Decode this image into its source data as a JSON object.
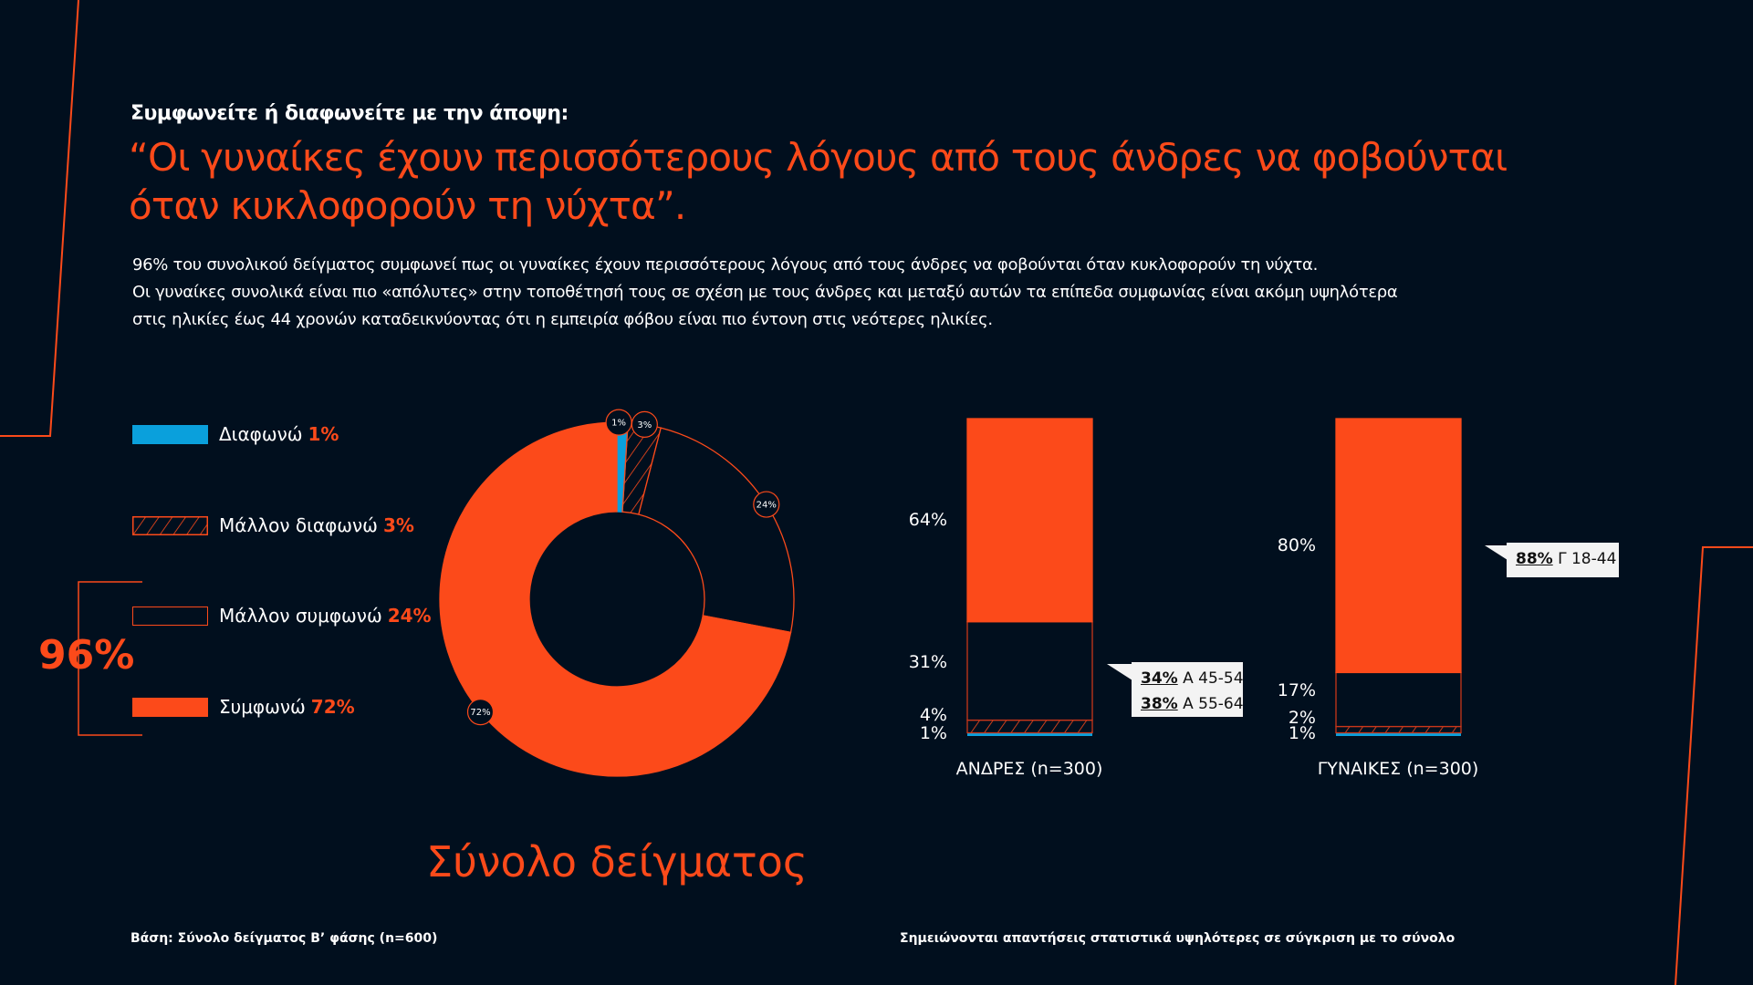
{
  "header": {
    "subtitle": "Συμφωνείτε ή διαφωνείτε με την άποψη:",
    "title_line1": "“Οι γυναίκες έχουν περισσότερους λόγους από τους άνδρες να φοβούνται",
    "title_line2": "όταν κυκλοφορούν τη νύχτα”.",
    "paragraph": [
      "96% του συνολικού δείγματος συμφωνεί πως οι γυναίκες έχουν περισσότερους λόγους από τους άνδρες να φοβούνται όταν κυκλοφορούν τη νύχτα.",
      "Οι γυναίκες συνολικά είναι πιο «απόλυτες» στην τοποθέτησή τους σε σχέση με τους άνδρες και μεταξύ αυτών τα επίπεδα συμφωνίας είναι ακόμη υψηλότερα",
      "στις ηλικίες έως 44 χρονών καταδεικνύοντας ότι η εμπειρία φόβου είναι πιο έντονη στις νεότερες ηλικίες."
    ]
  },
  "legend": [
    {
      "label": "Διαφωνώ",
      "pct": "1%",
      "style": "solid-blue"
    },
    {
      "label": "Μάλλον διαφωνώ",
      "pct": "3%",
      "style": "hatched"
    },
    {
      "label": "Μάλλον συμφωνώ",
      "pct": "24%",
      "style": "outline"
    },
    {
      "label": "Συμφωνώ",
      "pct": "72%",
      "style": "solid-orange"
    }
  ],
  "total_agree": "96%",
  "colors": {
    "background": "#010f1e",
    "accent": "#fc4a1a",
    "blue": "#0aa0dc"
  },
  "chart_data": [
    {
      "type": "pie",
      "variant": "donut",
      "title": "Σύνολο δείγματος",
      "categories": [
        "Διαφωνώ",
        "Μάλλον διαφωνώ",
        "Μάλλον συμφωνώ",
        "Συμφωνώ"
      ],
      "values": [
        1,
        3,
        24,
        72
      ],
      "labels": [
        "1%",
        "3%",
        "24%",
        "72%"
      ]
    },
    {
      "type": "bar",
      "variant": "stacked-100",
      "categories": [
        "ΑΝΔΡΕΣ (n=300)",
        "ΓΥΝΑΙΚΕΣ (n=300)"
      ],
      "series": [
        {
          "name": "Διαφωνώ",
          "values": [
            1,
            1
          ],
          "labels": [
            "1%",
            "1%"
          ]
        },
        {
          "name": "Μάλλον διαφωνώ",
          "values": [
            4,
            2
          ],
          "labels": [
            "4%",
            "2%"
          ]
        },
        {
          "name": "Μάλλον συμφωνώ",
          "values": [
            31,
            17
          ],
          "labels": [
            "31%",
            "17%"
          ]
        },
        {
          "name": "Συμφωνώ",
          "values": [
            64,
            80
          ],
          "labels": [
            "64%",
            "80%"
          ]
        }
      ],
      "annotations": [
        {
          "category": "ΑΝΔΡΕΣ (n=300)",
          "items": [
            {
              "pct": "34%",
              "group": "Α 45-54"
            },
            {
              "pct": "38%",
              "group": "Α 55-64"
            }
          ]
        },
        {
          "category": "ΓΥΝΑΙΚΕΣ (n=300)",
          "items": [
            {
              "pct": "88%",
              "group": "Γ 18-44"
            }
          ]
        }
      ]
    }
  ],
  "footer": {
    "base": "Βάση: Σύνολο δείγματος Β’ φάσης (n=600)",
    "note": "Σημειώνονται απαντήσεις στατιστικά υψηλότερες σε σύγκριση με το σύνολο"
  }
}
